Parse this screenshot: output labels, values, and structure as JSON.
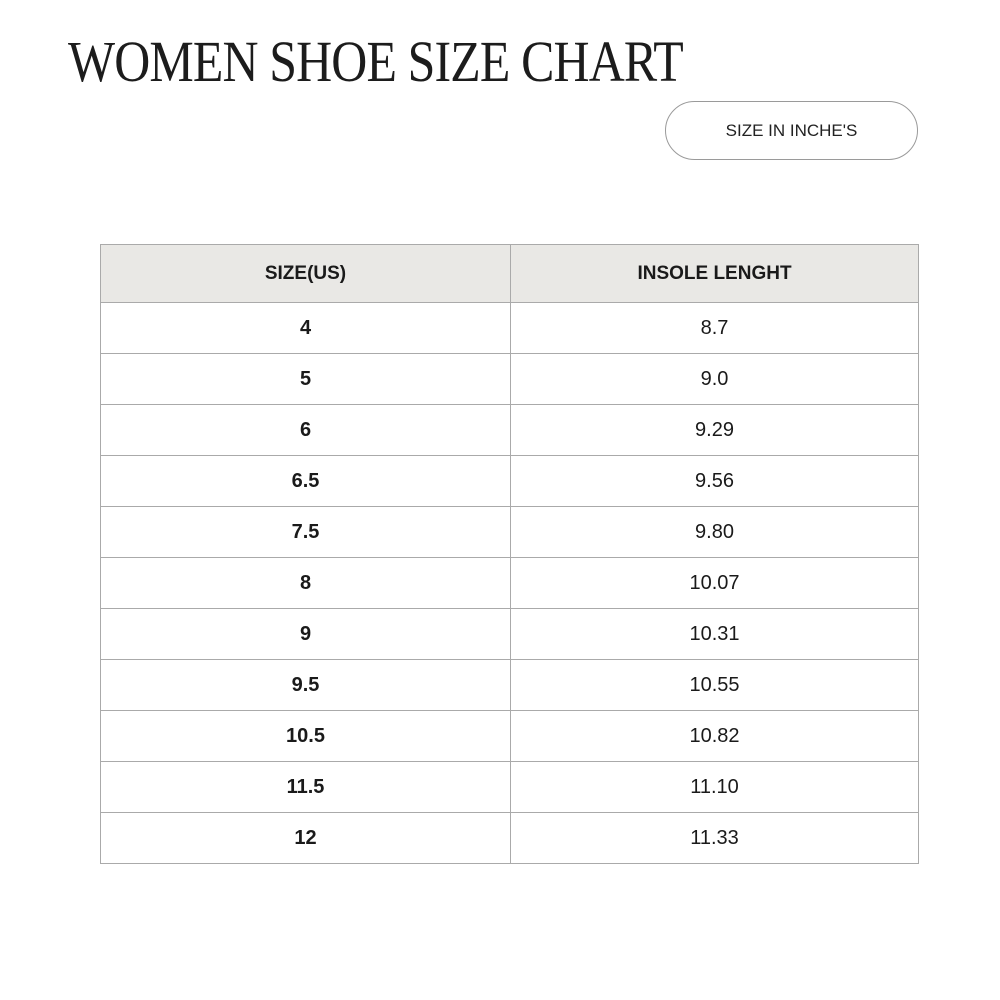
{
  "title": "WOMEN SHOE SIZE CHART",
  "unit_label": "SIZE IN INCHE'S",
  "table": {
    "headers": [
      "SIZE(US)",
      "INSOLE LENGHT"
    ],
    "rows": [
      [
        "4",
        "8.7"
      ],
      [
        "5",
        "9.0"
      ],
      [
        "6",
        "9.29"
      ],
      [
        "6.5",
        "9.56"
      ],
      [
        "7.5",
        "9.80"
      ],
      [
        "8",
        "10.07"
      ],
      [
        "9",
        "10.31"
      ],
      [
        "9.5",
        "10.55"
      ],
      [
        "10.5",
        "10.82"
      ],
      [
        "11.5",
        "11.10"
      ],
      [
        "12",
        "11.33"
      ]
    ]
  },
  "colors": {
    "header_bg": "#e9e8e5",
    "border": "#aaaaaa"
  }
}
